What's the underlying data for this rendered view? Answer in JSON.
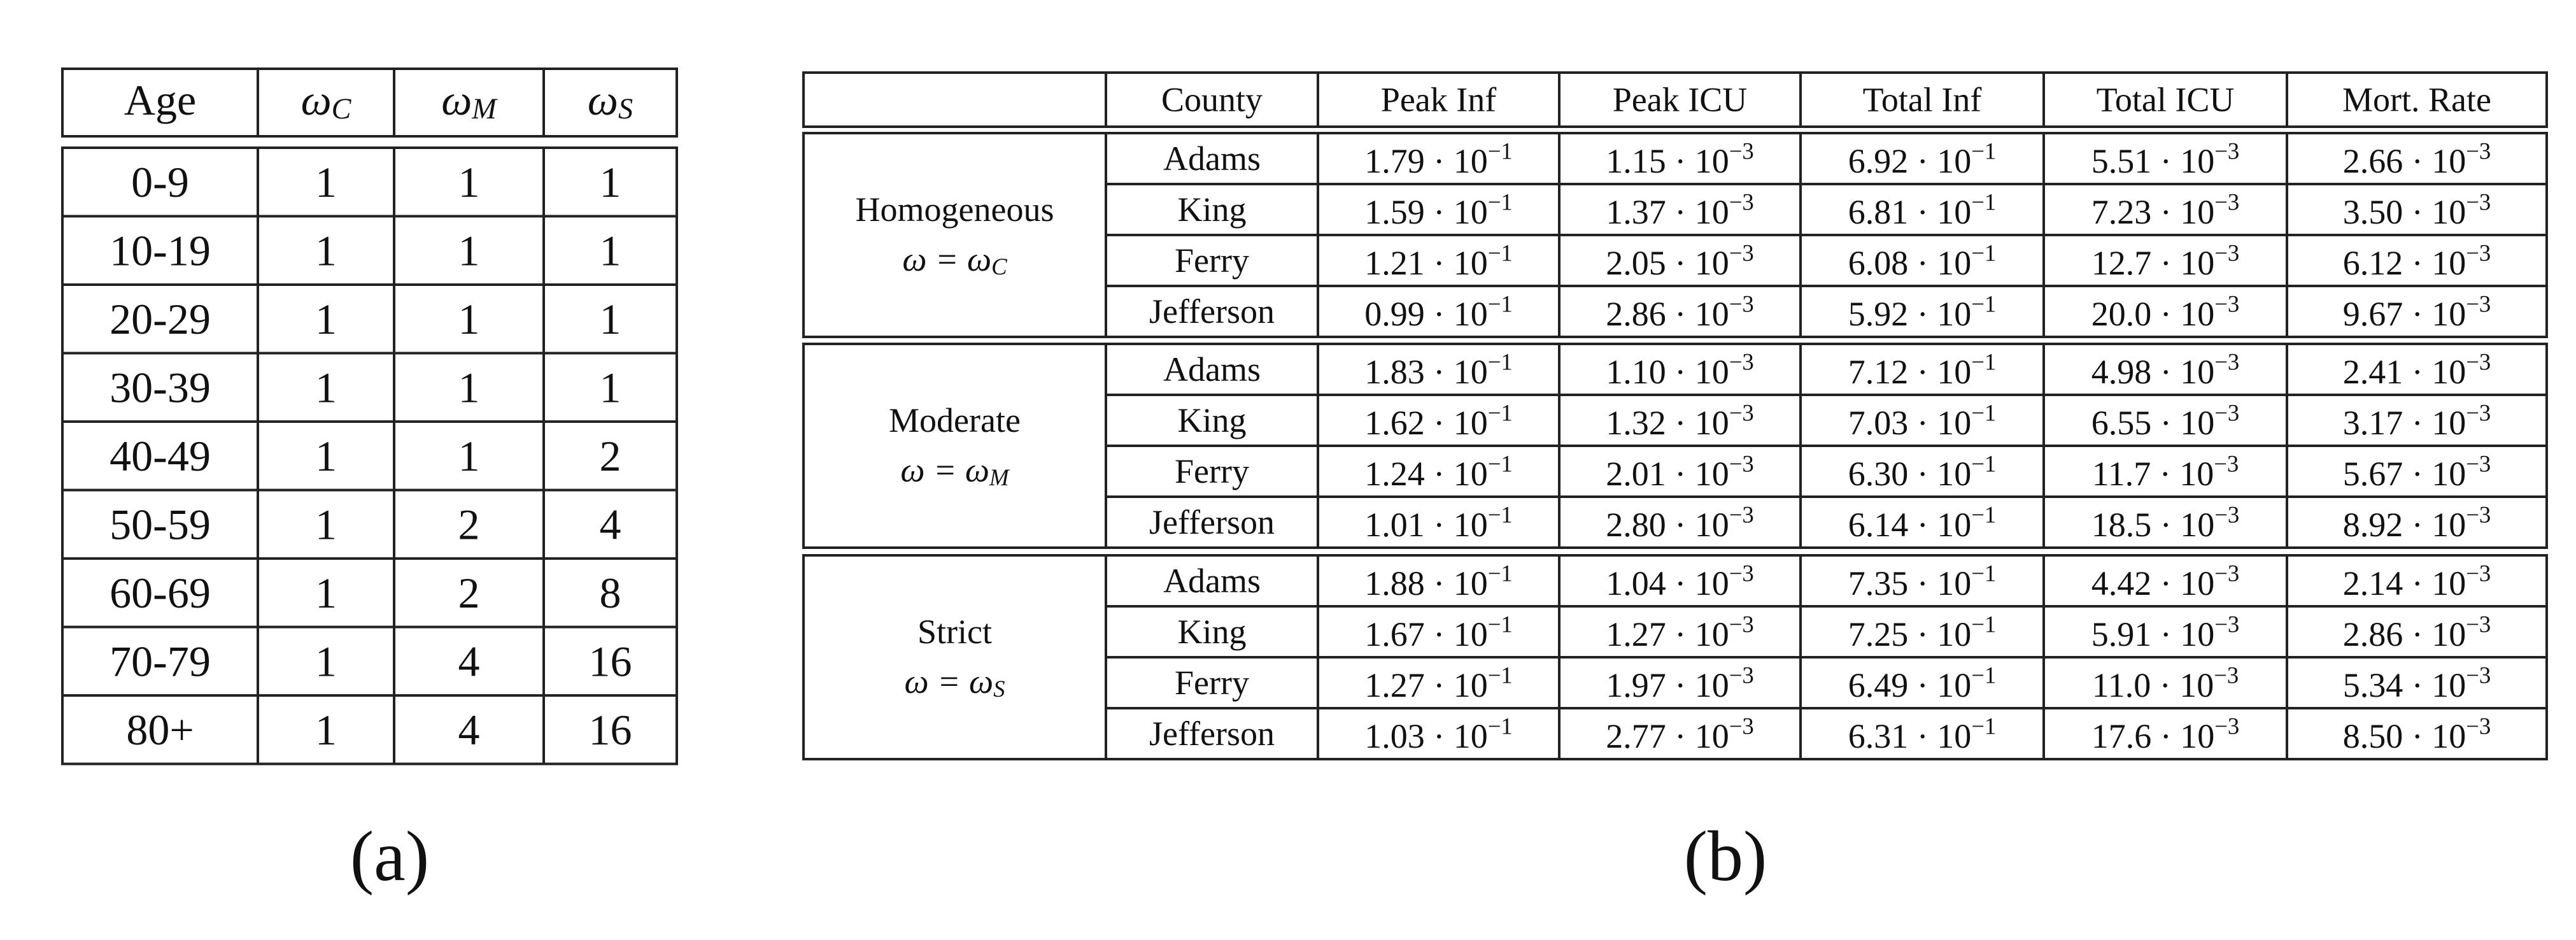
{
  "table_a": {
    "caption": "(a)",
    "header": [
      "Age",
      [
        "ω",
        "C"
      ],
      [
        "ω",
        "M"
      ],
      [
        "ω",
        "S"
      ]
    ],
    "rows": [
      [
        "0-9",
        "1",
        "1",
        "1"
      ],
      [
        "10-19",
        "1",
        "1",
        "1"
      ],
      [
        "20-29",
        "1",
        "1",
        "1"
      ],
      [
        "30-39",
        "1",
        "1",
        "1"
      ],
      [
        "40-49",
        "1",
        "1",
        "2"
      ],
      [
        "50-59",
        "1",
        "2",
        "4"
      ],
      [
        "60-69",
        "1",
        "2",
        "8"
      ],
      [
        "70-79",
        "1",
        "4",
        "16"
      ],
      [
        "80+",
        "1",
        "4",
        "16"
      ]
    ]
  },
  "table_b": {
    "caption": "(b)",
    "header": [
      "County",
      "Peak Inf",
      "Peak ICU",
      "Total Inf",
      "Total ICU",
      "Mort. Rate"
    ],
    "groups": [
      {
        "name": "Homogeneous",
        "omega": [
          "ω = ω",
          "C"
        ],
        "rows": [
          {
            "county": "Adams",
            "values": [
              [
                "1.79 · 10",
                "−1"
              ],
              [
                "1.15 · 10",
                "−3"
              ],
              [
                "6.92 · 10",
                "−1"
              ],
              [
                "5.51 · 10",
                "−3"
              ],
              [
                "2.66 · 10",
                "−3"
              ]
            ]
          },
          {
            "county": "King",
            "values": [
              [
                "1.59 · 10",
                "−1"
              ],
              [
                "1.37 · 10",
                "−3"
              ],
              [
                "6.81 · 10",
                "−1"
              ],
              [
                "7.23 · 10",
                "−3"
              ],
              [
                "3.50 · 10",
                "−3"
              ]
            ]
          },
          {
            "county": "Ferry",
            "values": [
              [
                "1.21 · 10",
                "−1"
              ],
              [
                "2.05 · 10",
                "−3"
              ],
              [
                "6.08 · 10",
                "−1"
              ],
              [
                "12.7 · 10",
                "−3"
              ],
              [
                "6.12 · 10",
                "−3"
              ]
            ]
          },
          {
            "county": "Jefferson",
            "values": [
              [
                "0.99 · 10",
                "−1"
              ],
              [
                "2.86 · 10",
                "−3"
              ],
              [
                "5.92 · 10",
                "−1"
              ],
              [
                "20.0 · 10",
                "−3"
              ],
              [
                "9.67 · 10",
                "−3"
              ]
            ]
          }
        ]
      },
      {
        "name": "Moderate",
        "omega": [
          "ω = ω",
          "M"
        ],
        "rows": [
          {
            "county": "Adams",
            "values": [
              [
                "1.83 · 10",
                "−1"
              ],
              [
                "1.10 · 10",
                "−3"
              ],
              [
                "7.12 · 10",
                "−1"
              ],
              [
                "4.98 · 10",
                "−3"
              ],
              [
                "2.41 · 10",
                "−3"
              ]
            ]
          },
          {
            "county": "King",
            "values": [
              [
                "1.62 · 10",
                "−1"
              ],
              [
                "1.32 · 10",
                "−3"
              ],
              [
                "7.03 · 10",
                "−1"
              ],
              [
                "6.55 · 10",
                "−3"
              ],
              [
                "3.17 · 10",
                "−3"
              ]
            ]
          },
          {
            "county": "Ferry",
            "values": [
              [
                "1.24 · 10",
                "−1"
              ],
              [
                "2.01 · 10",
                "−3"
              ],
              [
                "6.30 · 10",
                "−1"
              ],
              [
                "11.7 · 10",
                "−3"
              ],
              [
                "5.67 · 10",
                "−3"
              ]
            ]
          },
          {
            "county": "Jefferson",
            "values": [
              [
                "1.01 · 10",
                "−1"
              ],
              [
                "2.80 · 10",
                "−3"
              ],
              [
                "6.14 · 10",
                "−1"
              ],
              [
                "18.5 · 10",
                "−3"
              ],
              [
                "8.92 · 10",
                "−3"
              ]
            ]
          }
        ]
      },
      {
        "name": "Strict",
        "omega": [
          "ω = ω",
          "S"
        ],
        "rows": [
          {
            "county": "Adams",
            "values": [
              [
                "1.88 · 10",
                "−1"
              ],
              [
                "1.04 · 10",
                "−3"
              ],
              [
                "7.35 · 10",
                "−1"
              ],
              [
                "4.42 · 10",
                "−3"
              ],
              [
                "2.14 · 10",
                "−3"
              ]
            ]
          },
          {
            "county": "King",
            "values": [
              [
                "1.67 · 10",
                "−1"
              ],
              [
                "1.27 · 10",
                "−3"
              ],
              [
                "7.25 · 10",
                "−1"
              ],
              [
                "5.91 · 10",
                "−3"
              ],
              [
                "2.86 · 10",
                "−3"
              ]
            ]
          },
          {
            "county": "Ferry",
            "values": [
              [
                "1.27 · 10",
                "−1"
              ],
              [
                "1.97 · 10",
                "−3"
              ],
              [
                "6.49 · 10",
                "−1"
              ],
              [
                "11.0 · 10",
                "−3"
              ],
              [
                "5.34 · 10",
                "−3"
              ]
            ]
          },
          {
            "county": "Jefferson",
            "values": [
              [
                "1.03 · 10",
                "−1"
              ],
              [
                "2.77 · 10",
                "−3"
              ],
              [
                "6.31 · 10",
                "−1"
              ],
              [
                "17.6 · 10",
                "−3"
              ],
              [
                "8.50 · 10",
                "−3"
              ]
            ]
          }
        ]
      }
    ]
  }
}
